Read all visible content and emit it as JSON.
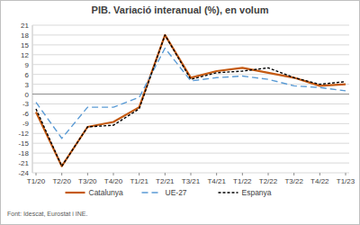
{
  "chart_data": {
    "type": "line",
    "title": "PIB. Variació interanual (%), en volum",
    "source": "Font: Idescat, Eurostat i INE.",
    "categories": [
      "T1/20",
      "T2/20",
      "T3/20",
      "T4/20",
      "T1/21",
      "T2/21",
      "T3/21",
      "T4/21",
      "T1/22",
      "T2/22",
      "T3/22",
      "T4/22",
      "T1/23"
    ],
    "series": [
      {
        "name": "Catalunya",
        "color": "#c55a11",
        "line_style": "solid",
        "values": [
          -5.5,
          -22,
          -10,
          -8.5,
          -4,
          18,
          5,
          7,
          8,
          6.5,
          5,
          2.5,
          3
        ]
      },
      {
        "name": "UE-27",
        "color": "#5b9bd5",
        "line_style": "dashed",
        "values": [
          -2.5,
          -13.5,
          -4,
          -4,
          -1,
          14,
          4,
          5,
          5.5,
          4.5,
          2.5,
          2,
          1
        ]
      },
      {
        "name": "Espanya",
        "color": "#000000",
        "line_style": "dotted",
        "values": [
          -4.5,
          -22,
          -10,
          -9.5,
          -4.5,
          18,
          4.5,
          6.5,
          7,
          8,
          5,
          3,
          3.8
        ]
      }
    ],
    "ylim": [
      -24,
      21
    ],
    "yticks": [
      -24,
      -21,
      -18,
      -15,
      -12,
      -9,
      -6,
      -3,
      0,
      3,
      6,
      9,
      12,
      15,
      18,
      21
    ],
    "grid": true,
    "legend": "bottom"
  }
}
